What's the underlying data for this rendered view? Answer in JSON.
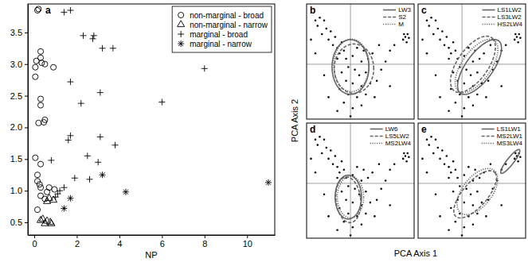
{
  "chart_data": [
    {
      "type": "scatter",
      "title": "a",
      "xlabel": "NP",
      "xlim": [
        -0.3,
        11.3
      ],
      "ylim": [
        0.3,
        3.95
      ],
      "xticks": [
        0,
        2,
        4,
        6,
        8,
        10
      ],
      "yticks": [
        0.5,
        {
          "value": 1,
          "label": "1.0"
        },
        1.5,
        {
          "value": 2,
          "label": "2.0"
        },
        2.5,
        {
          "value": 3,
          "label": "3.0"
        },
        3.5
      ],
      "legend": "upper right",
      "series": [
        {
          "name": "non-marginal - broad",
          "marker": "circle",
          "color": "#000000",
          "x": [
            0.15,
            0.2,
            0.3,
            0.3,
            0.1,
            0.35,
            0.5,
            0.05,
            0.9,
            0.05,
            0.3,
            0.3,
            0.5,
            0.45,
            0.2,
            0.05,
            0.3,
            0.15,
            0.15,
            0.25,
            0.3,
            0.7,
            0.95,
            0.6,
            0.3,
            0.5,
            0.15
          ],
          "y": [
            3.85,
            3.87,
            3.2,
            3.1,
            3.05,
            3.02,
            3.0,
            2.95,
            2.95,
            2.8,
            2.45,
            2.35,
            2.12,
            2.08,
            2.07,
            1.52,
            1.42,
            1.25,
            1.15,
            1.1,
            1.05,
            1.05,
            1.02,
            0.98,
            0.92,
            0.87,
            0.7
          ]
        },
        {
          "name": "non-marginal - narrow",
          "marker": "triangle",
          "color": "#000000",
          "x": [
            0.7,
            0.6,
            0.9,
            0.4,
            0.6,
            0.3,
            0.75,
            0.5,
            0.8
          ],
          "y": [
            0.88,
            0.83,
            0.85,
            0.55,
            0.52,
            0.53,
            0.5,
            0.48,
            0.48
          ]
        },
        {
          "name": "marginal - broad",
          "marker": "plus",
          "color": "#000000",
          "x": [
            1.4,
            1.7,
            2.3,
            2.8,
            2.75,
            3.2,
            3.7,
            1.7,
            3.1,
            2.2,
            6.0,
            8.0,
            1.7,
            1.6,
            3.1,
            3.8,
            2.5,
            0.8,
            3.0,
            1.9,
            2.6,
            1.4,
            1.2,
            1.1,
            1.0
          ],
          "y": [
            3.82,
            3.85,
            3.45,
            3.45,
            3.4,
            3.25,
            3.25,
            2.72,
            2.55,
            2.38,
            2.4,
            2.93,
            1.87,
            1.8,
            1.85,
            1.72,
            1.55,
            1.48,
            1.45,
            1.2,
            1.18,
            1.05,
            1.0,
            0.95,
            0.9
          ]
        },
        {
          "name": "marginal - narrow",
          "marker": "asterisk",
          "color": "#000000",
          "x": [
            1.4,
            1.7,
            3.2,
            4.3,
            11.0
          ],
          "y": [
            0.72,
            0.88,
            1.25,
            0.98,
            1.13
          ]
        }
      ]
    },
    {
      "type": "scatter",
      "title": "b",
      "ylabel": "PCA Axis 2",
      "xlim": [
        -1,
        1.45
      ],
      "ylim": [
        -1,
        1.1
      ],
      "xticks": [
        0
      ],
      "yticks": [
        0
      ],
      "grid": true,
      "tick_labels": false,
      "legend": "upper right",
      "series": [
        {
          "marker": "dot",
          "color": "#000000",
          "x": [
            -0.8,
            -0.7,
            -0.75,
            -0.6,
            -0.55,
            -0.65,
            -0.45,
            -0.5,
            -0.35,
            -0.4,
            -0.3,
            -0.2,
            -0.25,
            -0.15,
            -0.1,
            -0.3,
            0.05,
            0.15,
            0.3,
            0.25,
            0.4,
            0.5,
            -0.05,
            0.1,
            -0.2,
            0.2,
            0.35,
            -0.1,
            0.05,
            0.25,
            0.45,
            0.6,
            -0.25,
            -0.05,
            0.15,
            0.35,
            0.55,
            -0.15,
            0.05,
            0.25,
            -0.3,
            0.0,
            0.7,
            0.8,
            0.65,
            0.9,
            -0.6,
            -0.8,
            -0.9,
            -0.5,
            1.2,
            1.25,
            1.3,
            1.22,
            1.33,
            1.28,
            0.9,
            1.0
          ],
          "y": [
            0.8,
            0.85,
            0.7,
            0.8,
            0.65,
            0.55,
            0.6,
            0.45,
            0.5,
            0.35,
            0.3,
            0.4,
            0.2,
            0.25,
            0.1,
            0.1,
            0.15,
            0.3,
            0.25,
            0.05,
            0.1,
            0.2,
            -0.05,
            -0.1,
            -0.15,
            -0.2,
            -0.15,
            -0.3,
            -0.35,
            -0.4,
            -0.35,
            -0.3,
            -0.45,
            -0.55,
            -0.6,
            -0.55,
            -0.6,
            -0.7,
            -0.8,
            -0.75,
            -0.85,
            -0.95,
            -0.1,
            0.05,
            0.35,
            -0.4,
            -0.2,
            0.2,
            0.45,
            -0.6,
            0.45,
            0.5,
            0.55,
            0.55,
            0.48,
            0.4,
            0.25,
            0.35
          ]
        },
        {
          "name": "LW3",
          "type": "ellipse",
          "line_style": "solid",
          "color": "#666666",
          "center": [
            0.0,
            -0.05
          ],
          "radii": [
            0.42,
            0.5
          ],
          "angle": 0
        },
        {
          "name": "S2",
          "type": "ellipse",
          "line_style": "dashed",
          "color": "#666666",
          "center": [
            0.08,
            -0.08
          ],
          "radii": [
            0.45,
            0.45
          ],
          "angle": 0
        },
        {
          "name": "M",
          "type": "ellipse",
          "line_style": "dotted",
          "color": "#666666",
          "center": [
            0.02,
            -0.02
          ],
          "radii": [
            0.4,
            0.48
          ],
          "angle": 0
        }
      ]
    },
    {
      "type": "scatter",
      "title": "c",
      "xlim": [
        -1,
        1.45
      ],
      "ylim": [
        -1,
        1.1
      ],
      "xticks": [
        0
      ],
      "yticks": [
        0
      ],
      "grid": true,
      "tick_labels": false,
      "legend": "upper right",
      "series": [
        {
          "marker": "dot",
          "color": "#000000",
          "x": [
            -0.8,
            -0.7,
            -0.75,
            -0.6,
            -0.55,
            -0.65,
            -0.45,
            -0.5,
            -0.35,
            -0.4,
            -0.3,
            -0.2,
            -0.25,
            -0.15,
            -0.1,
            -0.3,
            0.05,
            0.15,
            0.3,
            0.25,
            0.4,
            0.5,
            -0.05,
            0.1,
            -0.2,
            0.2,
            0.35,
            -0.1,
            0.05,
            0.25,
            0.45,
            0.6,
            -0.25,
            -0.05,
            0.15,
            0.35,
            0.55,
            -0.15,
            0.05,
            0.25,
            -0.3,
            0.0,
            0.7,
            0.8,
            0.65,
            0.9,
            -0.6,
            -0.8,
            -0.9,
            -0.5,
            1.2,
            1.25,
            1.3,
            1.22,
            1.33,
            1.28,
            0.9,
            1.0
          ],
          "y": [
            0.8,
            0.85,
            0.7,
            0.8,
            0.65,
            0.55,
            0.6,
            0.45,
            0.5,
            0.35,
            0.3,
            0.4,
            0.2,
            0.25,
            0.1,
            0.1,
            0.15,
            0.3,
            0.25,
            0.05,
            0.1,
            0.2,
            -0.05,
            -0.1,
            -0.15,
            -0.2,
            -0.15,
            -0.3,
            -0.35,
            -0.4,
            -0.35,
            -0.3,
            -0.45,
            -0.55,
            -0.6,
            -0.55,
            -0.6,
            -0.7,
            -0.8,
            -0.75,
            -0.85,
            -0.95,
            -0.1,
            0.05,
            0.35,
            -0.4,
            -0.2,
            0.2,
            0.45,
            -0.6,
            0.45,
            0.5,
            0.55,
            0.55,
            0.48,
            0.4,
            0.25,
            0.35
          ]
        },
        {
          "name": "LS1LW2",
          "type": "ellipse",
          "line_style": "solid",
          "color": "#666666",
          "center": [
            0.4,
            -0.05
          ],
          "radii": [
            0.65,
            0.28
          ],
          "angle": 45
        },
        {
          "name": "LS3LW2",
          "type": "ellipse",
          "line_style": "dashed",
          "color": "#666666",
          "center": [
            0.25,
            0.0
          ],
          "radii": [
            0.65,
            0.32
          ],
          "angle": 45
        },
        {
          "name": "HS2LW4",
          "type": "ellipse",
          "line_style": "dotted",
          "color": "#666666",
          "center": [
            0.33,
            -0.03
          ],
          "radii": [
            0.62,
            0.3
          ],
          "angle": 45
        }
      ]
    },
    {
      "type": "scatter",
      "title": "d",
      "xlabel": "PCA Axis 1",
      "xlim": [
        -1,
        1.45
      ],
      "ylim": [
        -1,
        1.1
      ],
      "xticks": [
        0
      ],
      "yticks": [
        0
      ],
      "grid": true,
      "tick_labels": false,
      "legend": "upper right",
      "series": [
        {
          "marker": "dot",
          "color": "#000000",
          "x": [
            -0.8,
            -0.7,
            -0.75,
            -0.6,
            -0.55,
            -0.65,
            -0.45,
            -0.5,
            -0.35,
            -0.4,
            -0.3,
            -0.2,
            -0.25,
            -0.15,
            -0.1,
            -0.3,
            0.05,
            0.15,
            0.3,
            0.25,
            0.4,
            0.5,
            -0.05,
            0.1,
            -0.2,
            0.2,
            0.35,
            -0.1,
            0.05,
            0.25,
            0.45,
            0.6,
            -0.25,
            -0.05,
            0.15,
            0.35,
            0.55,
            -0.15,
            0.05,
            0.25,
            -0.3,
            0.0,
            0.7,
            0.8,
            0.65,
            0.9,
            -0.6,
            -0.8,
            -0.9,
            -0.5,
            1.2,
            1.25,
            1.3,
            1.22,
            1.33,
            1.28,
            0.9,
            1.0
          ],
          "y": [
            0.8,
            0.85,
            0.7,
            0.8,
            0.65,
            0.55,
            0.6,
            0.45,
            0.5,
            0.35,
            0.3,
            0.4,
            0.2,
            0.25,
            0.1,
            0.1,
            0.15,
            0.3,
            0.25,
            0.05,
            0.1,
            0.2,
            -0.05,
            -0.1,
            -0.15,
            -0.2,
            -0.15,
            -0.3,
            -0.35,
            -0.4,
            -0.35,
            -0.3,
            -0.45,
            -0.55,
            -0.6,
            -0.55,
            -0.6,
            -0.7,
            -0.8,
            -0.75,
            -0.85,
            -0.95,
            -0.1,
            0.05,
            0.35,
            -0.4,
            -0.2,
            0.2,
            0.45,
            -0.6,
            0.45,
            0.5,
            0.55,
            0.55,
            0.48,
            0.4,
            0.25,
            0.35
          ]
        },
        {
          "name": "LW6",
          "type": "ellipse",
          "line_style": "solid",
          "color": "#666666",
          "center": [
            -0.05,
            -0.25
          ],
          "radii": [
            0.3,
            0.4
          ],
          "angle": 0
        },
        {
          "name": "LS5LW2",
          "type": "ellipse",
          "line_style": "dashed",
          "color": "#666666",
          "center": [
            -0.05,
            -0.3
          ],
          "radii": [
            0.28,
            0.42
          ],
          "angle": 10
        },
        {
          "name": "MS2LW4",
          "type": "ellipse",
          "line_style": "dotted",
          "color": "#666666",
          "center": [
            0.0,
            -0.25
          ],
          "radii": [
            0.3,
            0.38
          ],
          "angle": 0
        }
      ]
    },
    {
      "type": "scatter",
      "title": "e",
      "xlim": [
        -1,
        1.45
      ],
      "ylim": [
        -1,
        1.1
      ],
      "xticks": [
        0
      ],
      "yticks": [
        0
      ],
      "grid": true,
      "tick_labels": false,
      "legend": "upper right",
      "series": [
        {
          "marker": "dot",
          "color": "#000000",
          "x": [
            -0.8,
            -0.7,
            -0.75,
            -0.6,
            -0.55,
            -0.65,
            -0.45,
            -0.5,
            -0.35,
            -0.4,
            -0.3,
            -0.2,
            -0.25,
            -0.15,
            -0.1,
            -0.3,
            0.05,
            0.15,
            0.3,
            0.25,
            0.4,
            0.5,
            -0.05,
            0.1,
            -0.2,
            0.2,
            0.35,
            -0.1,
            0.05,
            0.25,
            0.45,
            0.6,
            -0.25,
            -0.05,
            0.15,
            0.35,
            0.55,
            -0.15,
            0.05,
            0.25,
            -0.3,
            0.0,
            0.7,
            0.8,
            0.65,
            0.9,
            -0.6,
            -0.8,
            -0.9,
            -0.5,
            1.2,
            1.25,
            1.3,
            1.22,
            1.33,
            1.28,
            0.9,
            1.0
          ],
          "y": [
            0.8,
            0.85,
            0.7,
            0.8,
            0.65,
            0.55,
            0.6,
            0.45,
            0.5,
            0.35,
            0.3,
            0.4,
            0.2,
            0.25,
            0.1,
            0.1,
            0.15,
            0.3,
            0.25,
            0.05,
            0.1,
            0.2,
            -0.05,
            -0.1,
            -0.15,
            -0.2,
            -0.15,
            -0.3,
            -0.35,
            -0.4,
            -0.35,
            -0.3,
            -0.45,
            -0.55,
            -0.6,
            -0.55,
            -0.6,
            -0.7,
            -0.8,
            -0.75,
            -0.85,
            -0.95,
            -0.1,
            0.05,
            0.35,
            -0.4,
            -0.2,
            0.2,
            0.45,
            -0.6,
            0.45,
            0.5,
            0.55,
            0.55,
            0.48,
            0.4,
            0.25,
            0.35
          ]
        },
        {
          "name": "LS1LW1",
          "type": "ellipse",
          "line_style": "solid",
          "color": "#666666",
          "center": [
            1.1,
            0.4
          ],
          "radii": [
            0.3,
            0.07
          ],
          "angle": 45
        },
        {
          "name": "MS2LW1",
          "type": "ellipse",
          "line_style": "dashed",
          "color": "#666666",
          "center": [
            0.3,
            -0.2
          ],
          "radii": [
            0.6,
            0.25
          ],
          "angle": 40
        },
        {
          "name": "MS3LW4",
          "type": "ellipse",
          "line_style": "dotted",
          "color": "#666666",
          "center": [
            0.35,
            -0.15
          ],
          "radii": [
            0.55,
            0.3
          ],
          "angle": 40
        }
      ]
    }
  ]
}
